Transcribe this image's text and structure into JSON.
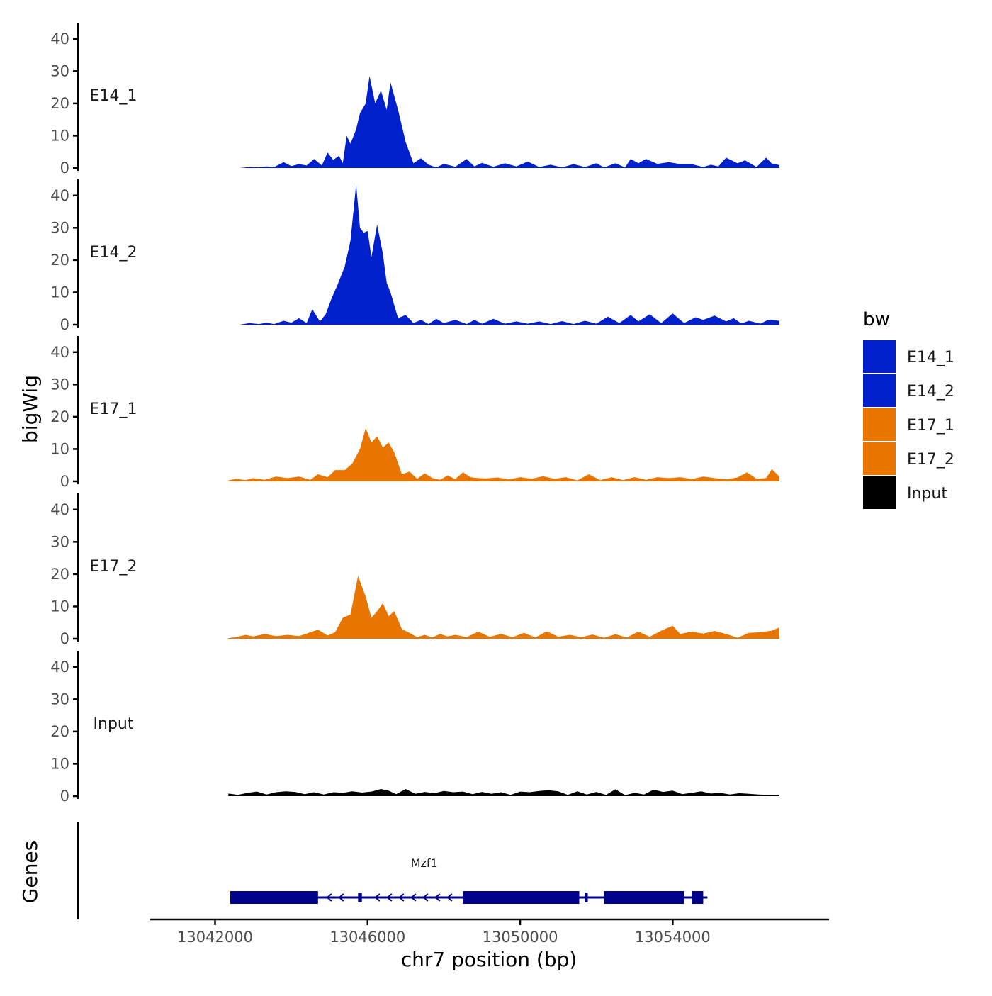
{
  "chart_data": {
    "type": "area",
    "chromosome": "chr7",
    "xlabel": "chr7 position (bp)",
    "ylabel": "bigWig",
    "gene_track_label": "Genes",
    "xlim": [
      13040300,
      13058100
    ],
    "x_ticks": [
      13042000,
      13046000,
      13050000,
      13054000
    ],
    "x_tick_labels": [
      "13042000",
      "13046000",
      "13050000",
      "13054000"
    ],
    "ylim": [
      0,
      45
    ],
    "y_ticks": [
      0,
      10,
      20,
      30,
      40
    ],
    "y_tick_labels": [
      "0",
      "10",
      "20",
      "30",
      "40"
    ],
    "legend": {
      "title": "bw",
      "entries": [
        {
          "label": "E14_1",
          "color": "#0020CC"
        },
        {
          "label": "E14_2",
          "color": "#0020CC"
        },
        {
          "label": "E17_1",
          "color": "#E87500"
        },
        {
          "label": "E17_2",
          "color": "#E87500"
        },
        {
          "label": "Input",
          "color": "#000000"
        }
      ]
    },
    "series": [
      {
        "name": "E14_1",
        "color": "#0020CC",
        "x": [
          13042650,
          13042900,
          13043150,
          13043350,
          13043550,
          13043800,
          13044000,
          13044200,
          13044400,
          13044600,
          13044800,
          13044950,
          13045100,
          13045250,
          13045350,
          13045450,
          13045550,
          13045700,
          13045800,
          13045950,
          13046050,
          13046200,
          13046350,
          13046500,
          13046600,
          13046800,
          13047000,
          13047200,
          13047400,
          13047600,
          13047800,
          13048000,
          13048300,
          13048600,
          13048800,
          13049000,
          13049300,
          13049600,
          13049900,
          13050200,
          13050500,
          13050800,
          13051100,
          13051400,
          13051700,
          13052000,
          13052200,
          13052500,
          13052750,
          13052900,
          13053100,
          13053300,
          13053600,
          13053900,
          13054200,
          13054500,
          13054800,
          13055000,
          13055200,
          13055400,
          13055700,
          13055900,
          13056200,
          13056450,
          13056600,
          13056800
        ],
        "values": [
          0,
          0.3,
          0.2,
          0.5,
          0.3,
          1.8,
          0.6,
          1.2,
          0.8,
          2.8,
          0.8,
          4.8,
          2.5,
          3.8,
          1.5,
          10,
          7.5,
          12,
          17,
          20,
          28.5,
          20,
          24,
          18,
          26.5,
          18,
          8,
          1.5,
          3,
          1,
          0.2,
          1.3,
          0.4,
          2.8,
          0.5,
          1.6,
          0.4,
          1.5,
          0.5,
          2,
          0.3,
          1,
          0.2,
          1.2,
          0.3,
          1.5,
          0.2,
          1.5,
          0.2,
          2.8,
          1.5,
          2.8,
          1.3,
          1.8,
          1.2,
          1.2,
          0.3,
          1,
          0.5,
          3.2,
          1.5,
          2.4,
          0.3,
          3.2,
          1.4,
          0.9
        ]
      },
      {
        "name": "E14_2",
        "color": "#0020CC",
        "x": [
          13042650,
          13042900,
          13043150,
          13043350,
          13043550,
          13043800,
          13044000,
          13044200,
          13044400,
          13044550,
          13044750,
          13044900,
          13045050,
          13045200,
          13045400,
          13045550,
          13045700,
          13045800,
          13045900,
          13046000,
          13046100,
          13046250,
          13046400,
          13046500,
          13046600,
          13046800,
          13047000,
          13047200,
          13047400,
          13047600,
          13047800,
          13048000,
          13048300,
          13048600,
          13048800,
          13049000,
          13049300,
          13049600,
          13049900,
          13050200,
          13050500,
          13050800,
          13051100,
          13051400,
          13051700,
          13052000,
          13052300,
          13052600,
          13052900,
          13053100,
          13053400,
          13053700,
          13054000,
          13054300,
          13054600,
          13054800,
          13055100,
          13055400,
          13055600,
          13055800,
          13056000,
          13056300,
          13056500,
          13056800
        ],
        "values": [
          0,
          0.5,
          0.2,
          0.6,
          0.2,
          1.2,
          0.6,
          2,
          0.5,
          4.8,
          1,
          3.2,
          8,
          12,
          18,
          26,
          43.5,
          30,
          28.5,
          29,
          21,
          31,
          22,
          13,
          10,
          2,
          3,
          0.5,
          1.5,
          0.2,
          1.8,
          0.5,
          1.5,
          0.2,
          1.5,
          0.3,
          1.8,
          0.3,
          1,
          0.3,
          1,
          0.2,
          1.1,
          0.2,
          1.2,
          0.3,
          2.5,
          0.5,
          3,
          1,
          3.2,
          0.5,
          3.5,
          0.5,
          2.3,
          1.5,
          2.8,
          1,
          2,
          0.4,
          1.2,
          0.3,
          1.5,
          1.2
        ]
      },
      {
        "name": "E17_1",
        "color": "#E87500",
        "x": [
          13042350,
          13042550,
          13042800,
          13043000,
          13043300,
          13043600,
          13043900,
          13044200,
          13044500,
          13044700,
          13044950,
          13045150,
          13045400,
          13045600,
          13045800,
          13045950,
          13046100,
          13046250,
          13046400,
          13046550,
          13046700,
          13046900,
          13047100,
          13047300,
          13047500,
          13047700,
          13047900,
          13048100,
          13048300,
          13048500,
          13048700,
          13048900,
          13049100,
          13049400,
          13049700,
          13050000,
          13050300,
          13050600,
          13050900,
          13051200,
          13051500,
          13051800,
          13052100,
          13052400,
          13052700,
          13053000,
          13053300,
          13053600,
          13053900,
          13054200,
          13054500,
          13054800,
          13055100,
          13055400,
          13055700,
          13055950,
          13056200,
          13056450,
          13056600,
          13056800
        ],
        "values": [
          0.3,
          0.8,
          0.4,
          1,
          0.5,
          1.5,
          1,
          1.5,
          0.5,
          2.2,
          1.3,
          3.5,
          3.5,
          5.5,
          10,
          16.5,
          12,
          14,
          10.5,
          12,
          9,
          2.2,
          3,
          0.8,
          2.5,
          1,
          0.5,
          1.8,
          0.7,
          2.8,
          1.3,
          1,
          0.9,
          1.2,
          0.6,
          1.3,
          0.8,
          1.6,
          0.8,
          1.3,
          0.3,
          2.2,
          0.4,
          1.3,
          0.4,
          1.3,
          0.5,
          1.3,
          1,
          1.3,
          0.7,
          1.5,
          1,
          0.6,
          1.2,
          2.8,
          0.8,
          1,
          3.8,
          1.5
        ]
      },
      {
        "name": "E17_2",
        "color": "#E87500",
        "x": [
          13042350,
          13042550,
          13042800,
          13043000,
          13043300,
          13043600,
          13043900,
          13044200,
          13044500,
          13044700,
          13044950,
          13045150,
          13045350,
          13045550,
          13045750,
          13045950,
          13046100,
          13046250,
          13046400,
          13046550,
          13046700,
          13046900,
          13047100,
          13047300,
          13047500,
          13047700,
          13047900,
          13048100,
          13048300,
          13048600,
          13048900,
          13049200,
          13049500,
          13049800,
          13050100,
          13050400,
          13050700,
          13051000,
          13051300,
          13051600,
          13051900,
          13052200,
          13052500,
          13052800,
          13053100,
          13053400,
          13053700,
          13054000,
          13054200,
          13054500,
          13054800,
          13055100,
          13055400,
          13055700,
          13056000,
          13056300,
          13056600,
          13056800
        ],
        "values": [
          0.2,
          0.5,
          1.2,
          0.7,
          1.5,
          0.8,
          1.2,
          0.8,
          2,
          2.8,
          1,
          2,
          6.5,
          7.5,
          19.5,
          13,
          6.5,
          8.5,
          11,
          7,
          8.5,
          3,
          1.8,
          0.5,
          1.2,
          0.4,
          1.5,
          0.7,
          1.2,
          0.5,
          2.2,
          0.6,
          1.5,
          0.5,
          1.8,
          0.4,
          2.3,
          0.6,
          1.2,
          0.5,
          1.3,
          0.3,
          1.4,
          0.4,
          2.2,
          0.6,
          2.5,
          4,
          1.5,
          2.2,
          1.6,
          2.4,
          1.5,
          0.3,
          1.8,
          2,
          2.5,
          3.5
        ]
      },
      {
        "name": "Input",
        "color": "#000000",
        "x": [
          13042350,
          13042600,
          13042850,
          13043100,
          13043350,
          13043600,
          13043850,
          13044100,
          13044350,
          13044600,
          13044850,
          13045100,
          13045350,
          13045600,
          13045850,
          13046100,
          13046350,
          13046550,
          13046750,
          13047000,
          13047250,
          13047500,
          13047750,
          13048000,
          13048250,
          13048500,
          13048750,
          13049000,
          13049250,
          13049500,
          13049750,
          13050000,
          13050250,
          13050500,
          13050750,
          13051000,
          13051250,
          13051500,
          13051750,
          13052000,
          13052250,
          13052500,
          13052750,
          13053000,
          13053250,
          13053500,
          13053750,
          13054000,
          13054250,
          13054500,
          13054750,
          13055000,
          13055250,
          13055500,
          13055750,
          13056000,
          13056250,
          13056500,
          13056800
        ],
        "values": [
          0.8,
          0.4,
          1,
          1.4,
          0.5,
          1.2,
          1.5,
          1.3,
          0.6,
          1.2,
          0.5,
          1.2,
          1,
          1.5,
          1.1,
          1.4,
          2.2,
          1.7,
          0.6,
          2.2,
          0.7,
          1.3,
          0.9,
          1.6,
          1.2,
          1.4,
          0.6,
          1.3,
          0.7,
          1.2,
          0.4,
          1.4,
          1.2,
          1.6,
          1.8,
          1.5,
          0.4,
          1.5,
          0.5,
          1.3,
          0.4,
          2.1,
          0.3,
          1,
          0.5,
          2,
          1.3,
          1.7,
          0.6,
          1,
          1.5,
          0.8,
          1,
          0.5,
          0.9,
          0.7,
          0.5,
          0.4,
          0.3
        ]
      }
    ],
    "genes": [
      {
        "name": "Mzf1",
        "strand": "-",
        "start": 13042400,
        "end": 13054800,
        "exons": [
          {
            "start": 13042400,
            "end": 13044700,
            "thick": true
          },
          {
            "start": 13045750,
            "end": 13045850,
            "thick": false
          },
          {
            "start": 13048500,
            "end": 13051550,
            "thick": true
          },
          {
            "start": 13051700,
            "end": 13051760,
            "thick": false
          },
          {
            "start": 13052200,
            "end": 13054300,
            "thick": true
          },
          {
            "start": 13054500,
            "end": 13054800,
            "thick": true
          }
        ]
      }
    ]
  }
}
